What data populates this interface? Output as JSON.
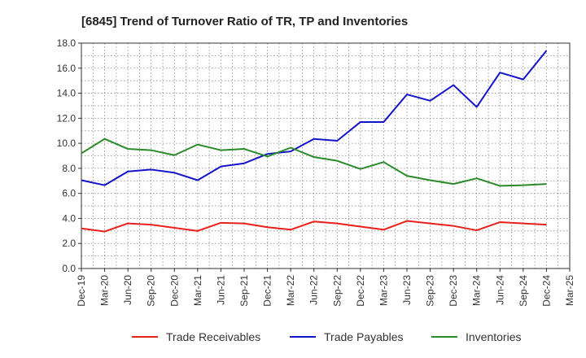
{
  "chart_data": {
    "type": "line",
    "title": "[6845]  Trend of Turnover Ratio of TR, TP and Inventories",
    "xlabel": "",
    "ylabel": "",
    "categories": [
      "Dec-19",
      "Mar-20",
      "Jun-20",
      "Sep-20",
      "Dec-20",
      "Mar-21",
      "Jun-21",
      "Sep-21",
      "Dec-21",
      "Mar-22",
      "Jun-22",
      "Sep-22",
      "Dec-22",
      "Mar-23",
      "Jun-23",
      "Sep-23",
      "Dec-23",
      "Mar-24",
      "Jun-24",
      "Sep-24",
      "Dec-24",
      "Mar-25"
    ],
    "yticks": [
      "0.0",
      "2.0",
      "4.0",
      "6.0",
      "8.0",
      "10.0",
      "12.0",
      "14.0",
      "16.0",
      "18.0"
    ],
    "ylim": [
      0,
      18
    ],
    "grid": true,
    "legend_position": "bottom",
    "series": [
      {
        "name": "Trade Receivables",
        "color": "#e8201c",
        "values": [
          3.2,
          2.95,
          3.6,
          3.5,
          3.25,
          3.0,
          3.65,
          3.6,
          3.3,
          3.1,
          3.75,
          3.6,
          3.35,
          3.1,
          3.8,
          3.6,
          3.4,
          3.05,
          3.7,
          3.6,
          3.5,
          null
        ]
      },
      {
        "name": "Trade Payables",
        "color": "#1414c8",
        "values": [
          7.05,
          6.65,
          7.75,
          7.9,
          7.65,
          7.05,
          8.15,
          8.4,
          9.15,
          9.35,
          10.35,
          10.2,
          11.7,
          11.7,
          13.9,
          13.4,
          14.65,
          12.9,
          15.65,
          15.1,
          17.4,
          null
        ]
      },
      {
        "name": "Inventories",
        "color": "#2a8a2a",
        "values": [
          9.2,
          10.35,
          9.55,
          9.45,
          9.05,
          9.9,
          9.45,
          9.55,
          8.95,
          9.65,
          8.9,
          8.6,
          7.95,
          8.5,
          7.4,
          7.05,
          6.75,
          7.2,
          6.6,
          6.65,
          6.75,
          null
        ]
      }
    ]
  }
}
